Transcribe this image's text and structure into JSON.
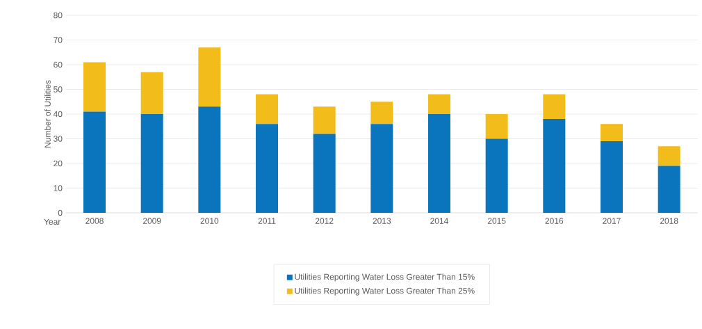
{
  "chart_data": {
    "type": "bar",
    "stacked": true,
    "ylabel": "Number of Utilities",
    "xlabel": "Year",
    "categories": [
      "2008",
      "2009",
      "2010",
      "2011",
      "2012",
      "2013",
      "2014",
      "2015",
      "2016",
      "2017",
      "2018"
    ],
    "series": [
      {
        "name": "Utilities Reporting Water Loss Greater Than 15%",
        "color": "#0a74bc",
        "values": [
          41,
          40,
          43,
          36,
          32,
          36,
          40,
          30,
          38,
          29,
          19
        ]
      },
      {
        "name": "Utilities Reporting Water Loss Greater Than 25%",
        "color": "#f2bd1b",
        "values": [
          20,
          17,
          24,
          12,
          11,
          9,
          8,
          10,
          10,
          7,
          8
        ]
      }
    ],
    "ylim": [
      0,
      80
    ],
    "yticks": [
      0,
      10,
      20,
      30,
      40,
      50,
      60,
      70,
      80
    ],
    "grid": "y",
    "legend": "bottom"
  }
}
